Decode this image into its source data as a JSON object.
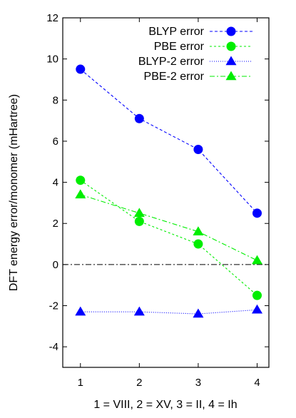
{
  "chart_data": {
    "type": "line",
    "title": "",
    "xlabel": "1 = VIII, 2 = XV, 3 = II, 4 = Ih",
    "ylabel": "DFT energy error/monomer (mHartree)",
    "xlim": [
      0.7,
      4.2
    ],
    "ylim": [
      -5,
      12
    ],
    "x_ticks": [
      1,
      2,
      3,
      4
    ],
    "y_ticks": [
      -4,
      -2,
      0,
      2,
      4,
      6,
      8,
      10,
      12
    ],
    "legend_position": "top-right",
    "grid": false,
    "zero_line": true,
    "x": [
      1,
      2,
      3,
      4
    ],
    "series": [
      {
        "name": "BLYP error",
        "values": [
          9.5,
          7.1,
          5.6,
          2.5
        ],
        "color": "#0000ff",
        "marker": "circle",
        "dash": "4,3"
      },
      {
        "name": "PBE error",
        "values": [
          4.1,
          2.1,
          1.0,
          -1.5
        ],
        "color": "#00ee00",
        "marker": "circle",
        "dash": "3,3"
      },
      {
        "name": "BLYP-2 error",
        "values": [
          -2.3,
          -2.3,
          -2.4,
          -2.2
        ],
        "color": "#0000ff",
        "marker": "triangle",
        "dash": "1,2"
      },
      {
        "name": "PBE-2 error",
        "values": [
          3.4,
          2.5,
          1.6,
          0.2
        ],
        "color": "#00ee00",
        "marker": "triangle",
        "dash": "7,3,2,3"
      }
    ]
  }
}
